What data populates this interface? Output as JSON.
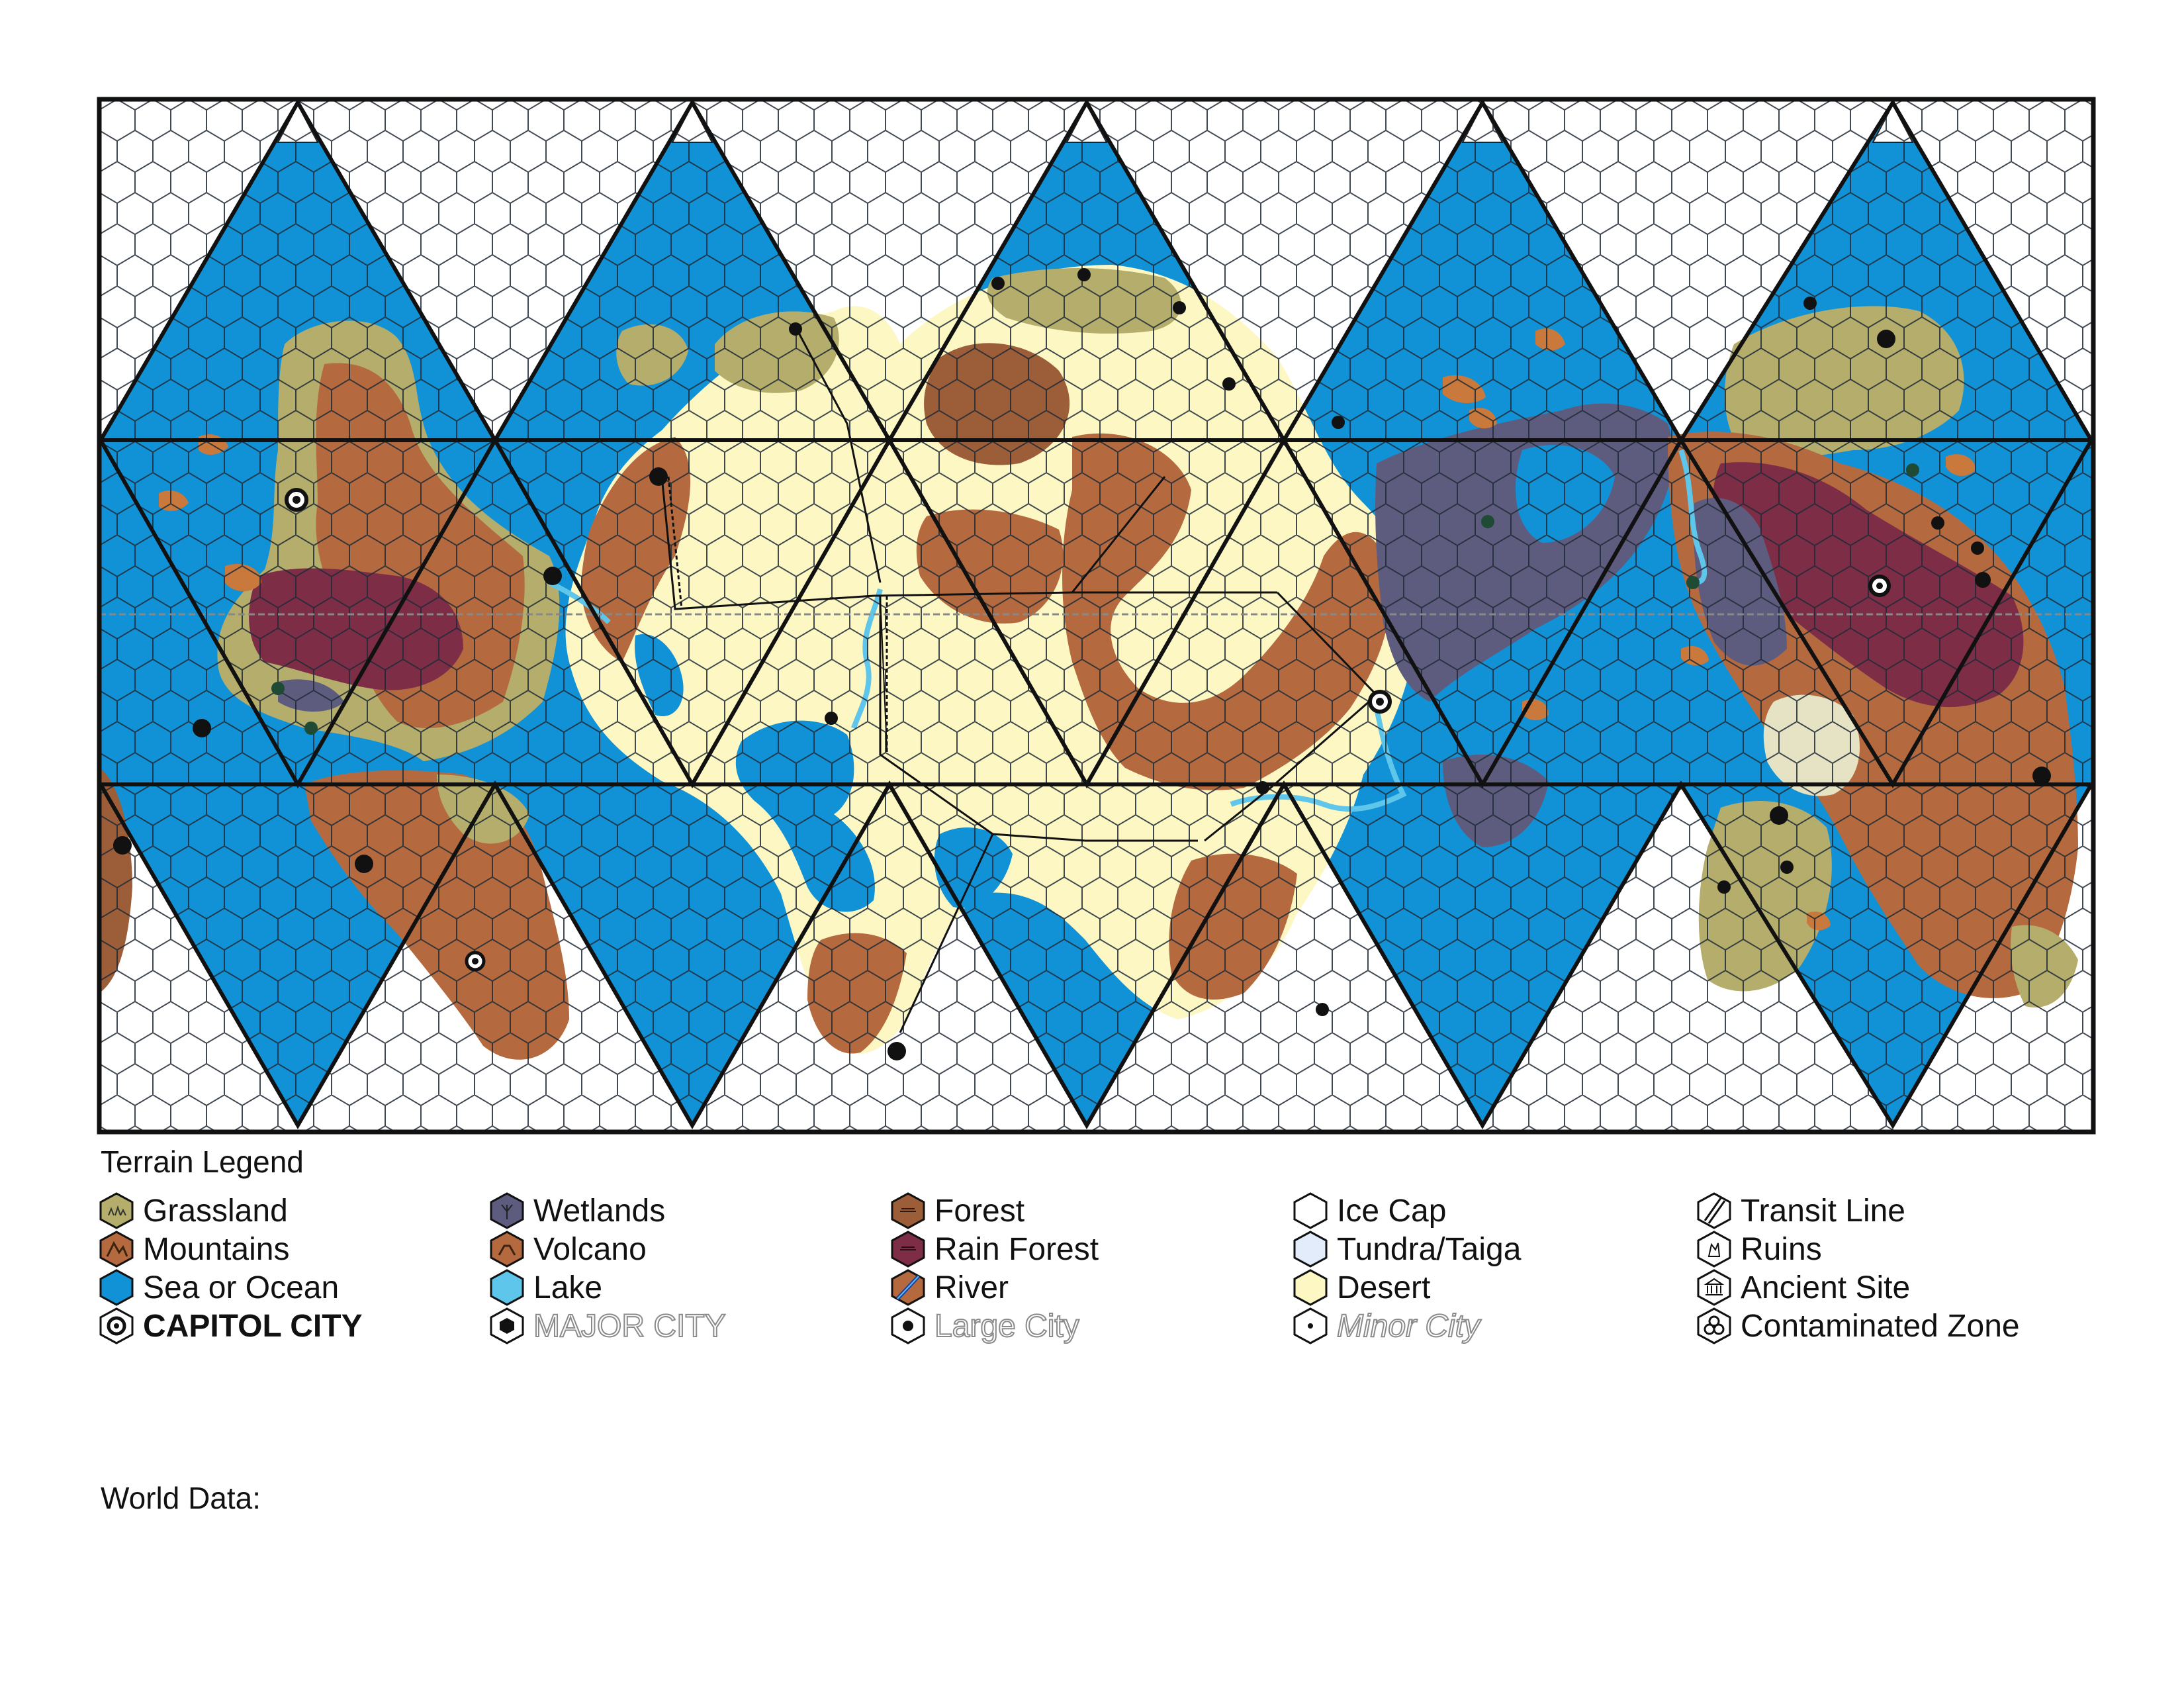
{
  "colors": {
    "ocean": "#1192d6",
    "grassland": "#b4ad6c",
    "mountains": "#b46a3e",
    "forest": "#9c5d39",
    "rain_forest": "#7e2d47",
    "wetlands": "#5e5c7e",
    "desert": "#fdf7c4",
    "ice": "#ffffff",
    "tundra": "#e2ecfb",
    "lake": "#5ec6ea",
    "island": "#c9793b",
    "contaminated": "#e6e2c4"
  },
  "legend": {
    "title": "Terrain Legend",
    "columns": [
      [
        {
          "label": "Grassland",
          "icon": "grassland-hex-icon",
          "fill": "#b4ad6c",
          "style": ""
        },
        {
          "label": "Mountains",
          "icon": "mountains-hex-icon",
          "fill": "#b46a3e",
          "style": ""
        },
        {
          "label": "Sea or Ocean",
          "icon": "sea-hex-icon",
          "fill": "#1192d6",
          "style": ""
        },
        {
          "label": "CAPITOL CITY",
          "icon": "capitol-city-icon",
          "fill": "#ffffff",
          "style": "capitol"
        }
      ],
      [
        {
          "label": "Wetlands",
          "icon": "wetlands-hex-icon",
          "fill": "#5e5c7e",
          "style": ""
        },
        {
          "label": "Volcano",
          "icon": "volcano-hex-icon",
          "fill": "#b46a3e",
          "style": ""
        },
        {
          "label": "Lake",
          "icon": "lake-hex-icon",
          "fill": "#5ec6ea",
          "style": ""
        },
        {
          "label": "MAJOR CITY",
          "icon": "major-city-icon",
          "fill": "#ffffff",
          "style": "major"
        }
      ],
      [
        {
          "label": "Forest",
          "icon": "forest-hex-icon",
          "fill": "#9c5d39",
          "style": ""
        },
        {
          "label": "Rain Forest",
          "icon": "rain-forest-hex-icon",
          "fill": "#7e2d47",
          "style": ""
        },
        {
          "label": "River",
          "icon": "river-hex-icon",
          "fill": "#b46a3e",
          "style": ""
        },
        {
          "label": "Large City",
          "icon": "large-city-icon",
          "fill": "#ffffff",
          "style": "large"
        }
      ],
      [
        {
          "label": "Ice Cap",
          "icon": "ice-cap-hex-icon",
          "fill": "#ffffff",
          "style": ""
        },
        {
          "label": "Tundra/Taiga",
          "icon": "tundra-hex-icon",
          "fill": "#e2ecfb",
          "style": ""
        },
        {
          "label": "Desert",
          "icon": "desert-hex-icon",
          "fill": "#fdf7c4",
          "style": ""
        },
        {
          "label": "Minor City",
          "icon": "minor-city-icon",
          "fill": "#ffffff",
          "style": "minor"
        }
      ],
      [
        {
          "label": "Transit Line",
          "icon": "transit-line-icon",
          "fill": "#ffffff",
          "style": ""
        },
        {
          "label": "Ruins",
          "icon": "ruins-icon",
          "fill": "#ffffff",
          "style": ""
        },
        {
          "label": "Ancient Site",
          "icon": "ancient-site-icon",
          "fill": "#ffffff",
          "style": ""
        },
        {
          "label": "Contaminated Zone",
          "icon": "biohazard-icon",
          "fill": "#ffffff",
          "style": ""
        }
      ]
    ]
  },
  "world_data": {
    "label": "World Data:"
  }
}
